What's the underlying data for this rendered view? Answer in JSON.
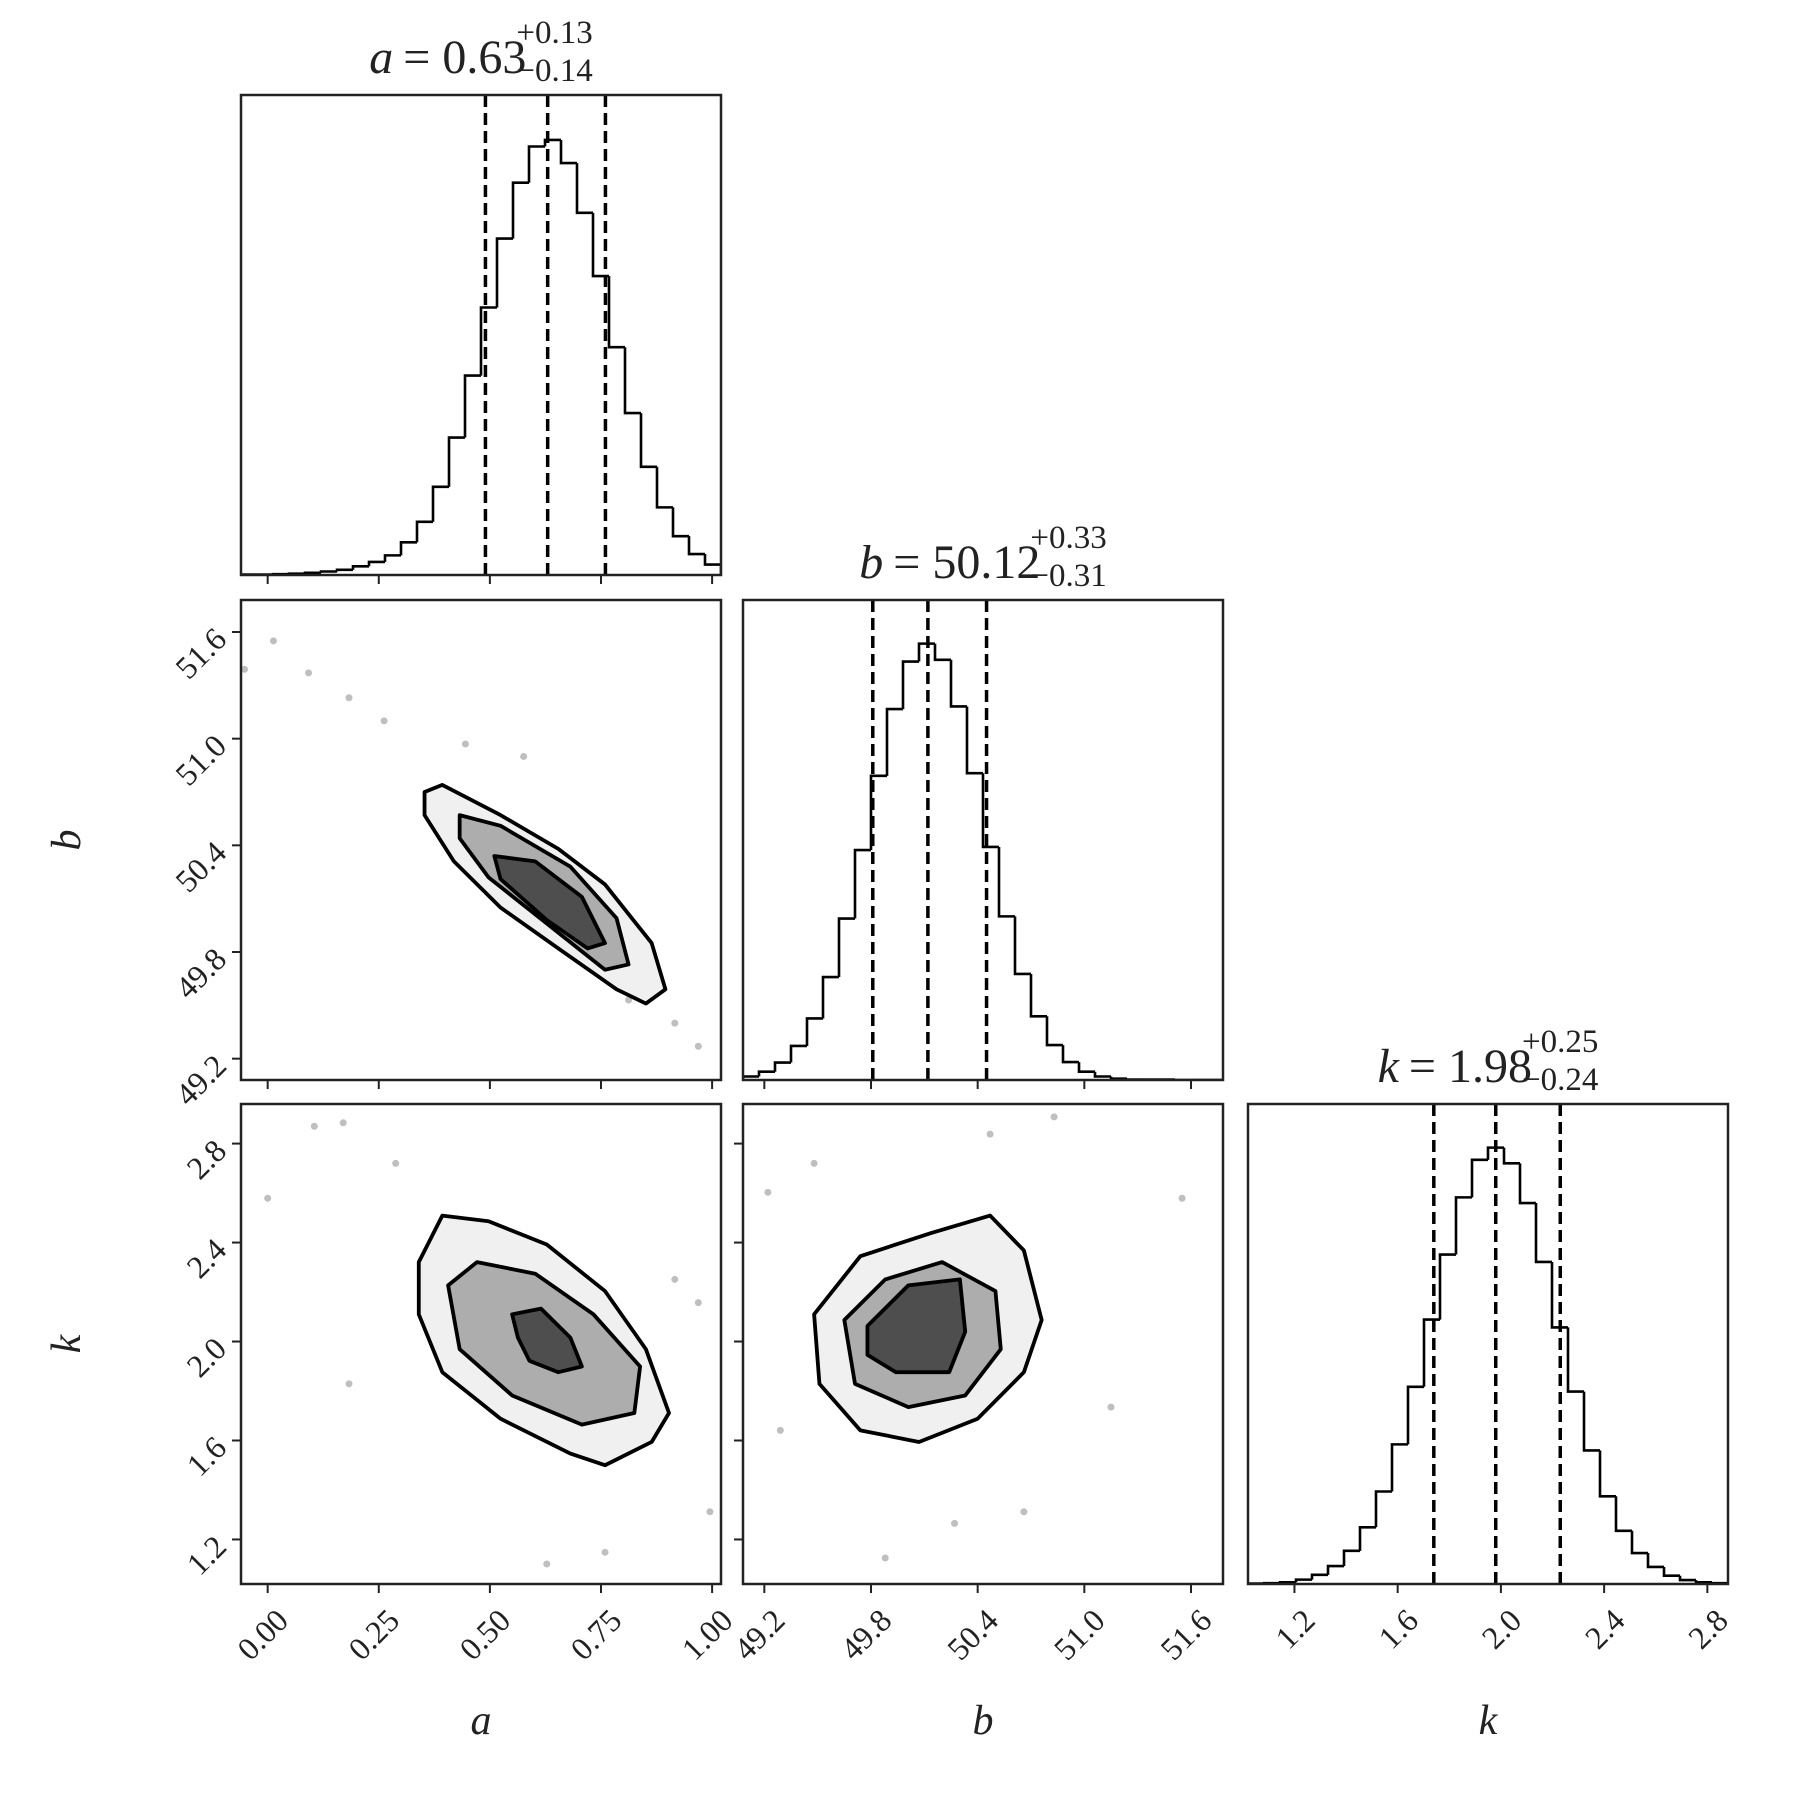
{
  "chart_data": [
    {
      "type": "histogram",
      "title_symbol": "a",
      "title_value": "= 0.63",
      "title_upper": "+0.13",
      "title_lower": "−0.14",
      "bins": [
        -0.06,
        -0.024,
        0.012,
        0.048,
        0.084,
        0.12,
        0.156,
        0.192,
        0.228,
        0.264,
        0.3,
        0.336,
        0.372,
        0.408,
        0.444,
        0.48,
        0.516,
        0.552,
        0.588,
        0.624,
        0.66,
        0.696,
        0.732,
        0.768,
        0.804,
        0.84,
        0.876,
        0.912,
        0.948,
        0.984,
        1.02
      ],
      "values": [
        1,
        1,
        2,
        3,
        5,
        8,
        12,
        20,
        30,
        45,
        75,
        122,
        202,
        315,
        457,
        613,
        771,
        899,
        982,
        997,
        944,
        830,
        685,
        522,
        371,
        248,
        155,
        89,
        48,
        24
      ],
      "quantiles": [
        0.49,
        0.63,
        0.76
      ],
      "xlim": [
        -0.06,
        1.02
      ],
      "ylim": [
        0,
        1100
      ]
    },
    {
      "type": "contour",
      "xlim": [
        -0.06,
        1.02
      ],
      "ylim": [
        49.08,
        51.78
      ],
      "yticks": [
        49.2,
        49.8,
        50.4,
        {
          "value": 51,
          "label": "51.0"
        },
        51.6
      ],
      "ylabel": "b",
      "points": {
        "x": [
          -0.052,
          0.013,
          0.092,
          0.183,
          0.262,
          0.969,
          0.916,
          0.812,
          0.445,
          0.576
        ],
        "y": [
          51.39,
          51.55,
          51.37,
          51.23,
          51.1,
          49.27,
          49.4,
          49.53,
          50.97,
          50.9
        ]
      },
      "contours": [
        {
          "x": [
            0.353,
            0.393,
            0.524,
            0.654,
            0.759,
            0.864,
            0.895,
            0.851,
            0.785,
            0.654,
            0.524,
            0.419,
            0.353
          ],
          "y": [
            50.7,
            50.74,
            50.57,
            50.38,
            50.18,
            49.85,
            49.59,
            49.51,
            49.59,
            49.82,
            50.05,
            50.31,
            50.57
          ]
        },
        {
          "x": [
            0.432,
            0.524,
            0.681,
            0.785,
            0.812,
            0.759,
            0.628,
            0.497,
            0.432
          ],
          "y": [
            50.57,
            50.51,
            50.28,
            49.99,
            49.73,
            49.7,
            49.96,
            50.22,
            50.44
          ]
        },
        {
          "x": [
            0.51,
            0.602,
            0.707,
            0.759,
            0.72,
            0.628,
            0.524
          ],
          "y": [
            50.34,
            50.31,
            50.11,
            49.85,
            49.82,
            49.98,
            50.21
          ]
        }
      ]
    },
    {
      "type": "histogram",
      "title_symbol": "b",
      "title_value": "= 50.12",
      "title_upper": "+0.33",
      "title_lower": "−0.31",
      "bins": [
        49.08,
        49.17,
        49.26,
        49.35,
        49.44,
        49.53,
        49.62,
        49.71,
        49.8,
        49.89,
        49.98,
        50.07,
        50.16,
        50.25,
        50.34,
        50.43,
        50.52,
        50.61,
        50.7,
        50.79,
        50.88,
        50.97,
        51.06,
        51.15,
        51.24,
        51.33,
        51.42,
        51.51,
        51.6,
        51.69,
        51.78
      ],
      "values": [
        8,
        19,
        40,
        78,
        141,
        236,
        370,
        527,
        697,
        850,
        959,
        1000,
        963,
        856,
        703,
        534,
        375,
        243,
        146,
        80,
        41,
        19,
        8,
        3,
        1,
        1,
        1,
        0,
        0,
        0
      ],
      "quantiles": [
        49.81,
        50.12,
        50.45
      ],
      "xlim": [
        49.08,
        51.78
      ],
      "ylim": [
        0,
        1100
      ]
    },
    {
      "type": "contour",
      "xlim": [
        -0.06,
        1.02
      ],
      "ylim": [
        1.02,
        2.96
      ],
      "xticks": [
        {
          "value": 0,
          "label": "0.00"
        },
        {
          "value": 0.25,
          "label": "0.25"
        },
        {
          "value": 0.5,
          "label": "0.50"
        },
        {
          "value": 0.75,
          "label": "0.75"
        },
        {
          "value": 1,
          "label": "1.00"
        }
      ],
      "yticks": [
        1.2,
        1.6,
        {
          "value": 2,
          "label": "2.0"
        },
        2.4,
        2.8
      ],
      "xlabel": "a",
      "ylabel": "k",
      "points": {
        "x": [
          0.105,
          0.17,
          0.0,
          0.969,
          0.995,
          0.759,
          0.628,
          0.183,
          0.288,
          0.916
        ],
        "y": [
          2.87,
          2.884,
          2.579,
          2.157,
          1.312,
          1.148,
          1.101,
          1.829,
          2.72,
          2.251
        ]
      },
      "contours": [
        {
          "x": [
            0.34,
            0.393,
            0.497,
            0.628,
            0.759,
            0.851,
            0.903,
            0.864,
            0.759,
            0.681,
            0.524,
            0.393,
            0.34
          ],
          "y": [
            2.321,
            2.509,
            2.486,
            2.392,
            2.204,
            1.969,
            1.711,
            1.594,
            1.5,
            1.547,
            1.688,
            1.876,
            2.11
          ]
        },
        {
          "x": [
            0.406,
            0.471,
            0.602,
            0.733,
            0.838,
            0.825,
            0.707,
            0.55,
            0.432
          ],
          "y": [
            2.227,
            2.321,
            2.274,
            2.11,
            1.899,
            1.711,
            1.664,
            1.782,
            1.969
          ]
        },
        {
          "x": [
            0.55,
            0.615,
            0.681,
            0.707,
            0.654,
            0.589,
            0.563
          ],
          "y": [
            2.11,
            2.133,
            2.016,
            1.899,
            1.876,
            1.922,
            2.016
          ]
        }
      ]
    },
    {
      "type": "contour",
      "xlim": [
        49.08,
        51.78
      ],
      "ylim": [
        1.02,
        2.96
      ],
      "xticks": [
        49.2,
        49.8,
        50.4,
        {
          "value": 51,
          "label": "51.0"
        },
        51.6
      ],
      "xlabel": "b",
      "points": {
        "x": [
          49.22,
          49.48,
          50.47,
          50.83,
          51.55,
          51.15,
          50.66,
          50.27,
          49.29,
          49.88
        ],
        "y": [
          2.603,
          2.72,
          2.838,
          2.908,
          2.579,
          1.735,
          1.312,
          1.265,
          1.641,
          1.125
        ]
      },
      "contours": [
        {
          "x": [
            49.48,
            49.74,
            50.14,
            50.47,
            50.66,
            50.76,
            50.66,
            50.4,
            50.07,
            49.74,
            49.51
          ],
          "y": [
            2.11,
            2.345,
            2.439,
            2.509,
            2.368,
            2.087,
            1.876,
            1.688,
            1.594,
            1.641,
            1.829
          ]
        },
        {
          "x": [
            49.65,
            49.88,
            50.2,
            50.5,
            50.53,
            50.33,
            50.01,
            49.71
          ],
          "y": [
            2.087,
            2.251,
            2.321,
            2.204,
            1.969,
            1.782,
            1.735,
            1.829
          ]
        },
        {
          "x": [
            49.78,
            50.01,
            50.3,
            50.33,
            50.24,
            49.94,
            49.78
          ],
          "y": [
            2.063,
            2.227,
            2.251,
            2.04,
            1.876,
            1.876,
            1.946
          ]
        }
      ]
    },
    {
      "type": "histogram",
      "title_symbol": "k",
      "title_value": "= 1.98",
      "title_upper": "+0.25",
      "title_lower": "−0.24",
      "bins": [
        1.02,
        1.082,
        1.144,
        1.206,
        1.268,
        1.33,
        1.392,
        1.454,
        1.516,
        1.578,
        1.64,
        1.702,
        1.764,
        1.826,
        1.888,
        1.95,
        2.012,
        2.074,
        2.136,
        2.198,
        2.26,
        2.322,
        2.384,
        2.446,
        2.508,
        2.57,
        2.632,
        2.694,
        2.756,
        2.818,
        2.88
      ],
      "values": [
        1,
        2,
        4,
        10,
        21,
        41,
        76,
        130,
        212,
        320,
        452,
        606,
        755,
        886,
        972,
        1000,
        964,
        873,
        738,
        588,
        441,
        306,
        201,
        122,
        71,
        39,
        19,
        9,
        4,
        2
      ],
      "quantiles": [
        1.74,
        1.98,
        2.23
      ],
      "xlim": [
        1.02,
        2.88
      ],
      "ylim": [
        0,
        1100
      ],
      "xticks": [
        1.2,
        1.6,
        {
          "value": 2,
          "label": "2.0"
        },
        2.4,
        2.8
      ],
      "xlabel": "k"
    }
  ]
}
